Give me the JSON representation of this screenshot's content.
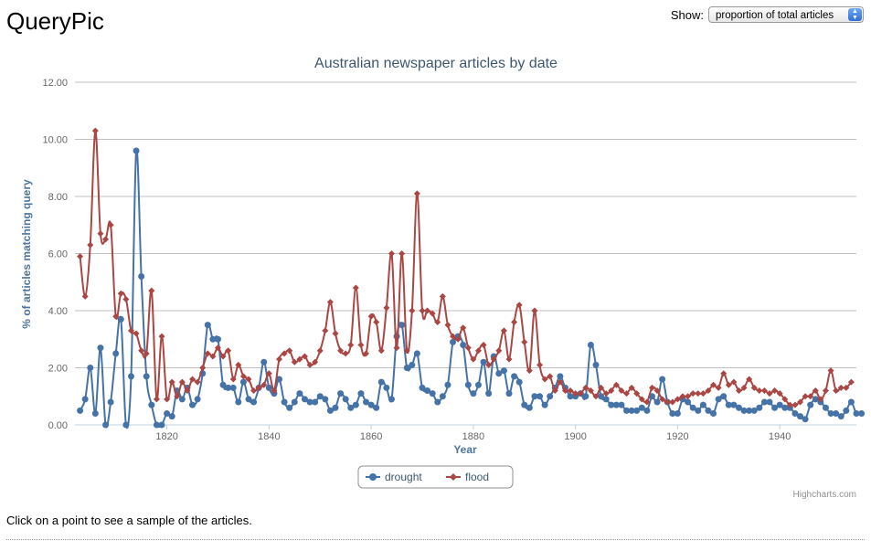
{
  "header": {
    "app_title": "QueryPic",
    "show_label": "Show:",
    "show_value": "proportion of total articles"
  },
  "footer": {
    "hint": "Click on a point to see a sample of the articles."
  },
  "colors": {
    "drought": "#4572A7",
    "flood": "#AA4643",
    "axis_text": "#4d759e",
    "grid": "#c0c0c0"
  },
  "chart_data": {
    "type": "line",
    "title": "Australian newspaper articles by date",
    "xlabel": "Year",
    "ylabel": "% of articles matching query",
    "credits": "Highcharts.com",
    "xlim": [
      1802,
      1955
    ],
    "ylim": [
      0,
      12
    ],
    "x_ticks": [
      "1820",
      "1840",
      "1860",
      "1880",
      "1900",
      "1920",
      "1940"
    ],
    "y_ticks": [
      "0.00",
      "2.00",
      "4.00",
      "6.00",
      "8.00",
      "10.00",
      "12.00"
    ],
    "legend_position": "bottom-center",
    "x_start": 1803,
    "series": [
      {
        "name": "drought",
        "color": "#4572A7",
        "marker": "circle",
        "values": [
          0.5,
          0.9,
          2.0,
          0.4,
          2.7,
          0.0,
          0.8,
          2.5,
          3.7,
          0.0,
          1.7,
          9.6,
          5.2,
          1.7,
          0.7,
          0.0,
          0.0,
          0.4,
          0.3,
          1.2,
          0.9,
          1.3,
          0.7,
          0.9,
          1.8,
          3.5,
          3.0,
          3.0,
          1.4,
          1.3,
          1.3,
          0.8,
          1.5,
          0.9,
          0.8,
          1.3,
          2.2,
          1.3,
          1.1,
          1.6,
          0.8,
          0.6,
          0.8,
          1.1,
          0.9,
          0.8,
          0.8,
          1.0,
          0.9,
          0.5,
          0.6,
          1.1,
          0.9,
          0.6,
          0.7,
          1.1,
          0.8,
          0.7,
          0.6,
          1.5,
          1.3,
          0.9,
          3.1,
          3.5,
          2.0,
          2.1,
          2.5,
          1.3,
          1.2,
          1.1,
          0.8,
          1.0,
          1.4,
          2.9,
          3.1,
          2.8,
          1.4,
          1.1,
          1.4,
          2.2,
          1.1,
          2.4,
          1.8,
          1.9,
          1.1,
          1.7,
          1.5,
          0.7,
          0.6,
          1.0,
          1.0,
          0.7,
          1.0,
          1.3,
          1.7,
          1.3,
          1.0,
          1.0,
          1.1,
          1.0,
          2.8,
          2.1,
          1.0,
          0.9,
          0.7,
          0.7,
          0.7,
          0.5,
          0.5,
          0.5,
          0.6,
          0.5,
          1.0,
          0.8,
          1.6,
          0.8,
          0.4,
          0.4,
          0.9,
          0.8,
          0.6,
          0.5,
          0.7,
          0.5,
          0.4,
          0.9,
          1.0,
          0.7,
          0.7,
          0.6,
          0.5,
          0.5,
          0.5,
          0.6,
          0.8,
          0.8,
          0.6,
          0.7,
          0.6,
          0.6,
          0.4,
          0.3,
          0.2,
          0.7,
          0.9,
          0.8,
          0.6,
          0.4,
          0.4,
          0.3,
          0.5,
          0.8,
          0.4,
          0.4
        ]
      },
      {
        "name": "flood",
        "color": "#AA4643",
        "marker": "diamond",
        "values": [
          5.9,
          4.5,
          6.3,
          10.3,
          6.7,
          6.5,
          7.0,
          3.8,
          4.6,
          4.4,
          3.3,
          3.2,
          2.6,
          2.5,
          4.7,
          0.9,
          3.1,
          0.9,
          1.5,
          1.0,
          1.5,
          1.2,
          1.6,
          1.5,
          2.0,
          2.5,
          2.4,
          2.7,
          2.4,
          2.6,
          1.6,
          2.1,
          1.7,
          1.6,
          1.2,
          1.3,
          1.4,
          1.8,
          1.2,
          2.3,
          2.5,
          2.6,
          2.2,
          2.3,
          2.4,
          2.1,
          2.2,
          2.6,
          3.3,
          4.3,
          3.2,
          2.6,
          2.5,
          2.8,
          4.8,
          2.8,
          2.5,
          3.8,
          3.6,
          2.6,
          4.1,
          6.0,
          2.7,
          6.0,
          2.6,
          4.0,
          8.1,
          4.0,
          4.0,
          3.9,
          3.6,
          4.5,
          3.5,
          3.1,
          3.0,
          3.4,
          2.7,
          2.3,
          2.6,
          2.8,
          2.1,
          2.3,
          2.6,
          3.3,
          2.3,
          3.6,
          4.2,
          2.9,
          1.9,
          4.0,
          2.1,
          1.6,
          1.7,
          1.2,
          1.5,
          1.2,
          1.2,
          1.1,
          1.1,
          1.3,
          1.2,
          1.0,
          1.3,
          1.1,
          1.2,
          1.4,
          1.2,
          1.1,
          1.3,
          1.1,
          0.9,
          0.8,
          1.3,
          1.2,
          0.9,
          0.8,
          0.8,
          0.9,
          1.0,
          1.0,
          1.1,
          1.1,
          1.1,
          1.2,
          1.4,
          1.3,
          1.8,
          1.4,
          1.5,
          1.2,
          1.3,
          1.6,
          1.3,
          1.2,
          1.2,
          1.1,
          1.2,
          1.1,
          0.9,
          0.7,
          0.7,
          0.8,
          1.0,
          1.0,
          1.2,
          0.9,
          1.2,
          1.9,
          1.2,
          1.3,
          1.3,
          1.5
        ]
      }
    ]
  }
}
